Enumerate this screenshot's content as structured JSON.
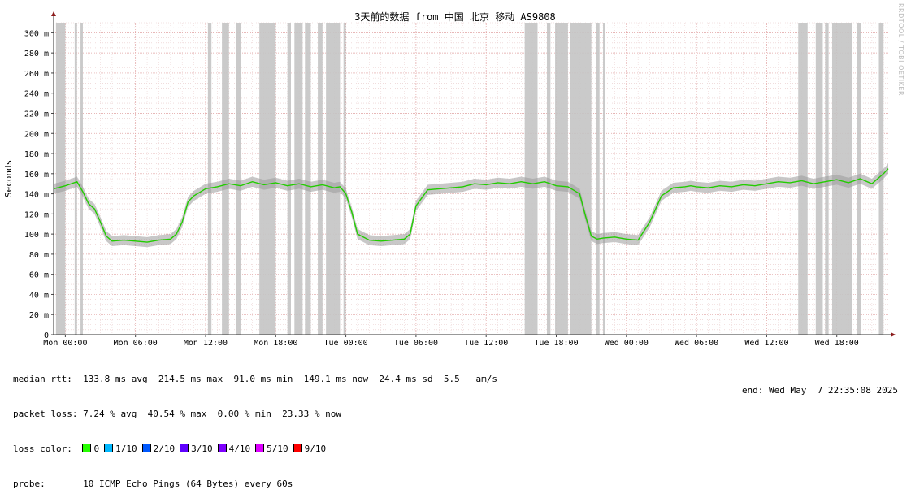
{
  "chart_data": {
    "type": "line",
    "title": "3天前的数据 from 中国 北京 移动 AS9808",
    "ylabel": "Seconds",
    "xlabel": "",
    "ylim": [
      0,
      310
    ],
    "y_ticks": [
      "0",
      "20 m",
      "40 m",
      "60 m",
      "80 m",
      "100 m",
      "120 m",
      "140 m",
      "160 m",
      "180 m",
      "200 m",
      "220 m",
      "240 m",
      "260 m",
      "280 m",
      "300 m"
    ],
    "y_tick_values": [
      0,
      20,
      40,
      60,
      80,
      100,
      120,
      140,
      160,
      180,
      200,
      220,
      240,
      260,
      280,
      300
    ],
    "x_ticks": [
      "Mon 00:00",
      "Mon 06:00",
      "Mon 12:00",
      "Mon 18:00",
      "Tue 00:00",
      "Tue 06:00",
      "Tue 12:00",
      "Tue 18:00",
      "Wed 00:00",
      "Wed 06:00",
      "Wed 12:00",
      "Wed 18:00"
    ],
    "x_range_hours": [
      -1.0,
      70.4
    ],
    "grid": true,
    "median_rtt_series": {
      "name": "median rtt",
      "x_hours": [
        -1.0,
        0.0,
        1.0,
        1.5,
        2.0,
        2.5,
        3.0,
        3.5,
        4.0,
        5.0,
        6.0,
        7.0,
        8.0,
        9.0,
        9.5,
        10.0,
        10.5,
        11.0,
        12.0,
        13.0,
        14.0,
        15.0,
        16.0,
        17.0,
        18.0,
        19.0,
        20.0,
        21.0,
        22.0,
        23.0,
        23.5,
        24.0,
        24.5,
        25.0,
        26.0,
        27.0,
        28.0,
        29.0,
        29.5,
        30.0,
        31.0,
        32.0,
        33.0,
        34.0,
        35.0,
        36.0,
        37.0,
        38.0,
        39.0,
        40.0,
        41.0,
        42.0,
        43.0,
        44.0,
        44.5,
        45.0,
        45.5,
        46.0,
        47.0,
        48.0,
        49.0,
        50.0,
        51.0,
        52.0,
        53.0,
        53.5,
        54.0,
        55.0,
        56.0,
        57.0,
        58.0,
        59.0,
        60.0,
        61.0,
        62.0,
        63.0,
        64.0,
        65.0,
        66.0,
        67.0,
        68.0,
        69.0,
        70.0,
        70.4
      ],
      "values_ms": [
        145,
        148,
        152,
        142,
        130,
        125,
        112,
        98,
        93,
        94,
        93,
        92,
        94,
        95,
        100,
        112,
        132,
        138,
        145,
        147,
        150,
        148,
        152,
        149,
        151,
        148,
        150,
        147,
        149,
        146,
        147,
        140,
        122,
        100,
        94,
        93,
        94,
        95,
        100,
        128,
        144,
        145,
        146,
        147,
        150,
        149,
        151,
        150,
        152,
        150,
        152,
        148,
        147,
        140,
        118,
        98,
        95,
        96,
        97,
        95,
        94,
        112,
        138,
        146,
        147,
        148,
        147,
        146,
        148,
        147,
        149,
        148,
        150,
        152,
        151,
        153,
        150,
        152,
        154,
        151,
        155,
        150,
        160,
        165
      ]
    },
    "loss_periods_hours": [
      [
        -0.8,
        0.0
      ],
      [
        0.8,
        1.0
      ],
      [
        1.3,
        1.5
      ],
      [
        12.2,
        12.5
      ],
      [
        13.4,
        14.0
      ],
      [
        14.6,
        15.0
      ],
      [
        16.6,
        18.0
      ],
      [
        19.0,
        19.3
      ],
      [
        19.6,
        20.3
      ],
      [
        20.5,
        21.0
      ],
      [
        21.6,
        22.0
      ],
      [
        22.3,
        23.5
      ],
      [
        23.8,
        24.0
      ],
      [
        39.3,
        40.4
      ],
      [
        41.2,
        41.5
      ],
      [
        41.9,
        43.0
      ],
      [
        43.2,
        45.0
      ],
      [
        45.4,
        45.7
      ],
      [
        46.0,
        46.2
      ],
      [
        62.7,
        63.5
      ],
      [
        64.2,
        64.8
      ],
      [
        65.0,
        65.3
      ],
      [
        65.6,
        67.3
      ],
      [
        67.7,
        68.1
      ],
      [
        69.6,
        70.0
      ]
    ],
    "stats": {
      "median_rtt_label": "median rtt:",
      "median_rtt_text": "133.8 ms avg  214.5 ms max  91.0 ms min  149.1 ms now  24.4 ms sd  5.5   am/s",
      "packet_loss_label": "packet loss:",
      "packet_loss_text": "7.24 % avg  40.54 % max  0.00 % min  23.33 % now",
      "loss_color_label": "loss color:",
      "loss_colors": [
        {
          "label": "0",
          "color": "#26ff00"
        },
        {
          "label": "1/10",
          "color": "#00b8ff"
        },
        {
          "label": "2/10",
          "color": "#0059ff"
        },
        {
          "label": "3/10",
          "color": "#5e00ff"
        },
        {
          "label": "4/10",
          "color": "#7e00ff"
        },
        {
          "label": "5/10",
          "color": "#dd00ff"
        },
        {
          "label": "9/10",
          "color": "#ff0000"
        }
      ],
      "probe_label": "probe:",
      "probe_text": "10 ICMP Echo Pings (64 Bytes) every 60s",
      "end_text": "end: Wed May  7 22:35:08 2025"
    },
    "watermark": "RRDTOOL / TOBI OETIKER"
  }
}
